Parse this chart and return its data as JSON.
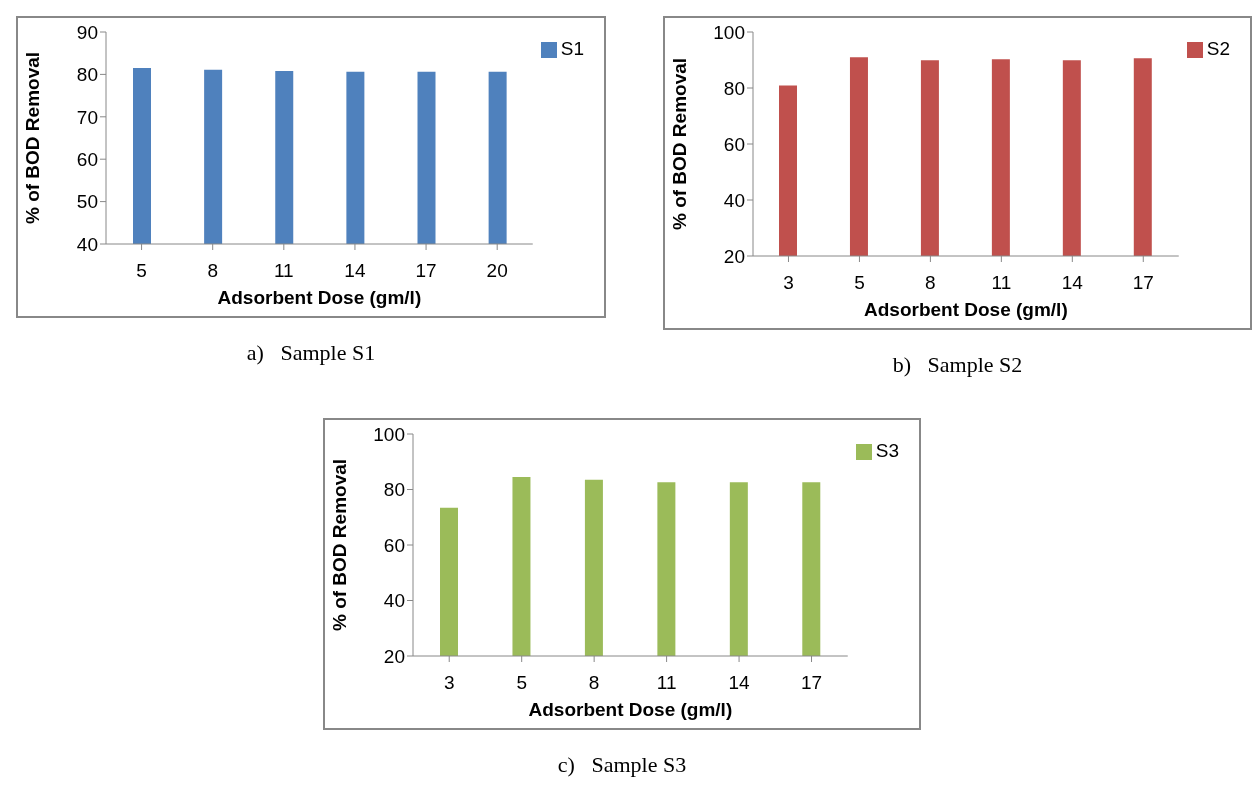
{
  "chart_data": [
    {
      "type": "bar",
      "categories": [
        "5",
        "8",
        "11",
        "14",
        "17",
        "20"
      ],
      "xlabel": "Adsorbent Dose (gm/l)",
      "ylabel": "% of BOD Removal",
      "ylim": [
        40,
        90
      ],
      "yticks": [
        40,
        50,
        60,
        70,
        80,
        90
      ],
      "grid": false,
      "legend": "right",
      "series": [
        {
          "name": "S1",
          "color": "#4f81bd",
          "values": [
            81.5,
            81.1,
            80.8,
            80.6,
            80.6,
            80.6
          ]
        }
      ],
      "annotations": [
        "a)   Sample S1"
      ]
    },
    {
      "type": "bar",
      "categories": [
        "3",
        "5",
        "8",
        "11",
        "14",
        "17"
      ],
      "xlabel": "Adsorbent Dose (gm/l)",
      "ylabel": "% of BOD Removal",
      "ylim": [
        20,
        100
      ],
      "yticks": [
        20,
        40,
        60,
        80,
        100
      ],
      "grid": false,
      "legend": "right",
      "series": [
        {
          "name": "S2",
          "color": "#c0504d",
          "values": [
            80.9,
            91.0,
            89.9,
            90.3,
            89.9,
            90.6
          ]
        }
      ],
      "annotations": [
        "b)   Sample S2"
      ]
    },
    {
      "type": "bar",
      "categories": [
        "3",
        "5",
        "8",
        "11",
        "14",
        "17"
      ],
      "xlabel": "Adsorbent Dose (gm/l)",
      "ylabel": "% of BOD Removal",
      "ylim": [
        20,
        100
      ],
      "yticks": [
        20,
        40,
        60,
        80,
        100
      ],
      "grid": false,
      "legend": "right",
      "series": [
        {
          "name": "S3",
          "color": "#9bbb59",
          "values": [
            73.4,
            84.5,
            83.5,
            82.6,
            82.6,
            82.6
          ]
        }
      ],
      "annotations": [
        "c)   Sample S3"
      ]
    }
  ]
}
